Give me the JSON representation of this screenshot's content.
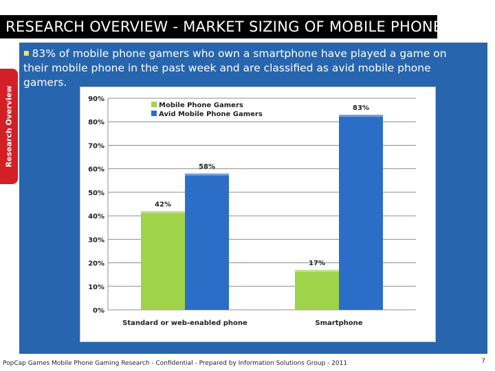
{
  "slide": {
    "title": "RESEARCH OVERVIEW - MARKET SIZING OF MOBILE PHONE GAMERS",
    "side_tab": "Research Overview",
    "bullet": "83% of mobile phone gamers who own a smartphone have played a game on their mobile phone in the past week and are classified as avid mobile phone gamers.",
    "footer": "PopCap Games Mobile Phone Gaming Research - Confidential - Prepared by Information Solutions Group - 2011",
    "page_number": "7"
  },
  "colors": {
    "title_bg": "#000000",
    "panel_bg": "#2765ae",
    "side_tab_bg": "#d31f26",
    "series_green": "#9fd34a",
    "series_blue": "#2c6ec7"
  },
  "chart_data": {
    "type": "bar",
    "categories": [
      "Standard or web-enabled phone",
      "Smartphone"
    ],
    "series": [
      {
        "name": "Mobile Phone Gamers",
        "values": [
          42,
          17
        ],
        "labels": [
          "42%",
          "17%"
        ],
        "color": "#9fd34a"
      },
      {
        "name": "Avid Mobile Phone Gamers",
        "values": [
          58,
          83
        ],
        "labels": [
          "58%",
          "83%"
        ],
        "color": "#2c6ec7"
      }
    ],
    "ylim": [
      0,
      90
    ],
    "yticks": [
      0,
      10,
      20,
      30,
      40,
      50,
      60,
      70,
      80,
      90
    ],
    "ytick_labels": [
      "0%",
      "10%",
      "20%",
      "30%",
      "40%",
      "50%",
      "60%",
      "70%",
      "80%",
      "90%"
    ],
    "grid": true,
    "legend_position": "top-left"
  }
}
